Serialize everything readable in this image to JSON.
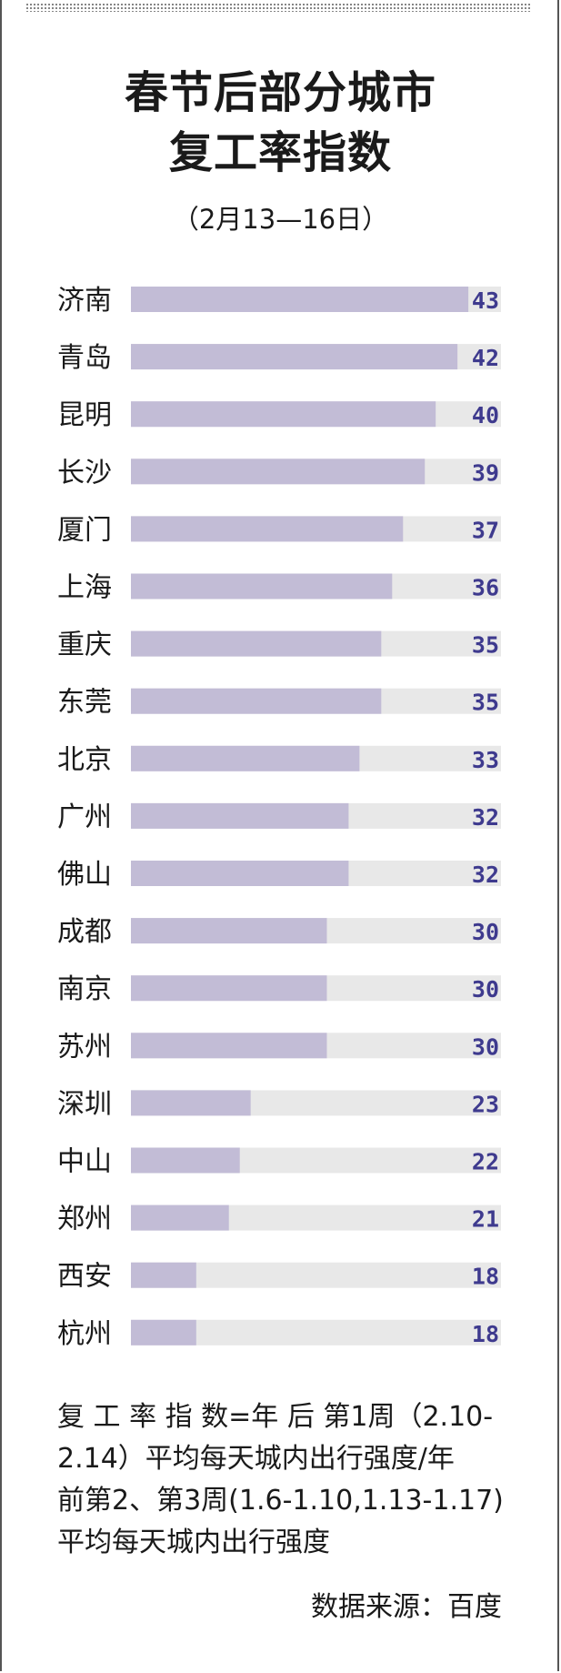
{
  "header": {
    "title_line1": "春节后部分城市",
    "title_line2": "复工率指数",
    "subtitle": "（2月13—16日）"
  },
  "chart_data": {
    "type": "bar",
    "orientation": "horizontal",
    "categories": [
      "济南",
      "青岛",
      "昆明",
      "长沙",
      "厦门",
      "上海",
      "重庆",
      "东莞",
      "北京",
      "广州",
      "佛山",
      "成都",
      "南京",
      "苏州",
      "深圳",
      "中山",
      "郑州",
      "西安",
      "杭州"
    ],
    "values": [
      43,
      42,
      40,
      39,
      37,
      36,
      35,
      35,
      33,
      32,
      32,
      30,
      30,
      30,
      23,
      22,
      21,
      18,
      18
    ],
    "xlim": [
      12,
      46
    ],
    "colors": {
      "bar": "#c2bcd6",
      "track": "#e8e8e8",
      "value_label": "#3e3a8e"
    }
  },
  "notes": {
    "line1": "复 工 率 指 数=年 后 第1周（2.10-",
    "line2": "2.14）平均每天城内出行强度/年",
    "line3": "前第2、第3周(1.6-1.10,1.13-1.17)",
    "line4": "平均每天城内出行强度"
  },
  "source": "数据来源：百度"
}
